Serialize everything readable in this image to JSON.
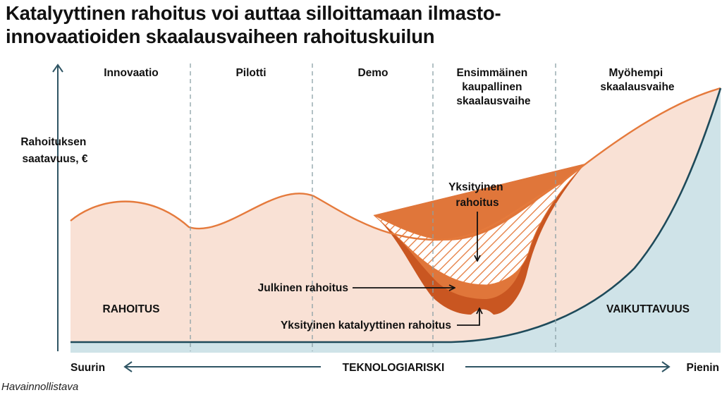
{
  "title": {
    "line1": "Katalyyttinen rahoitus voi auttaa silloittamaan ilmasto-",
    "line2": "innovaatioiden skaalausvaiheen rahoituskuilun"
  },
  "phases": [
    {
      "lines": [
        "Innovaatio"
      ]
    },
    {
      "lines": [
        "Pilotti"
      ]
    },
    {
      "lines": [
        "Demo"
      ]
    },
    {
      "lines": [
        "Ensimmäinen",
        "kaupallinen",
        "skaalausvaihe"
      ]
    },
    {
      "lines": [
        "Myöhempi",
        "skaalausvaihe"
      ]
    }
  ],
  "y_axis_label": [
    "Rahoituksen",
    "saatavuus, €"
  ],
  "areas": {
    "funding": "RAHOITUS",
    "impact": "VAIKUTTAVUUS"
  },
  "annotations": {
    "private": [
      "Yksityinen",
      "rahoitus"
    ],
    "public": "Julkinen rahoitus",
    "catalytic": "Yksityinen katalyyttinen rahoitus"
  },
  "x_axis": {
    "left": "Suurin",
    "label": "TEKNOLOGIARISKI",
    "right": "Pienin"
  },
  "footnote": "Havainnollistava",
  "colors": {
    "funding_fill": "#f9e1d5",
    "funding_line": "#e57a3c",
    "public_fill": "#e0763a",
    "catalytic_fill": "#c95621",
    "impact_fill": "#cfe3e8",
    "impact_line": "#1e4a5a",
    "divider": "#8aa0a6",
    "arrow": "#2f5564"
  }
}
